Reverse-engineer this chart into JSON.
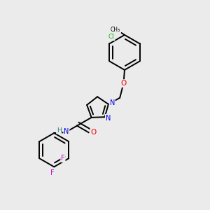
{
  "bg_color": "#ebebeb",
  "bond_color": "#000000",
  "atom_colors": {
    "N": "#0000ee",
    "O": "#ee0000",
    "Cl": "#00bb00",
    "F": "#cc00cc",
    "H": "#227777",
    "C": "#000000"
  },
  "bond_width": 1.4,
  "fig_size": [
    3.0,
    3.0
  ],
  "dpi": 100
}
